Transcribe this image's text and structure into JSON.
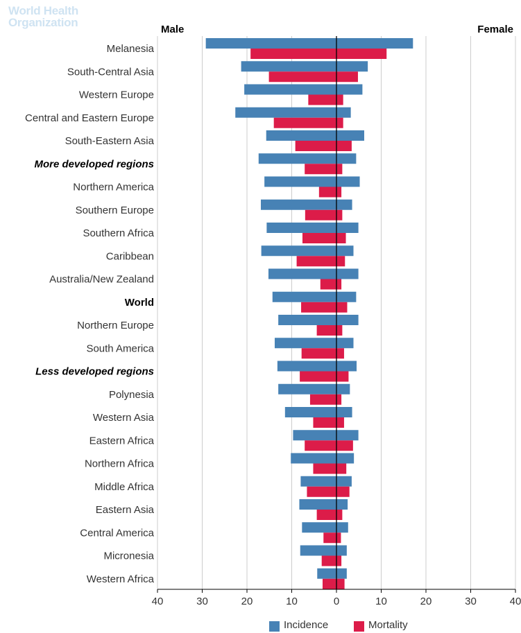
{
  "logo": {
    "line1": "World Health",
    "line2": "Organization"
  },
  "colors": {
    "incidence": "#4782b5",
    "mortality": "#dc1c49",
    "grid": "#cccccc",
    "axis": "#000000",
    "text": "#333333"
  },
  "chart_data": {
    "type": "bar",
    "orientation": "horizontal",
    "left_side_label": "Male",
    "right_side_label": "Female",
    "xlim": [
      -40,
      40
    ],
    "x_ticks": [
      {
        "value": -40,
        "label": "40"
      },
      {
        "value": -30,
        "label": "30"
      },
      {
        "value": -20,
        "label": "20"
      },
      {
        "value": -10,
        "label": "10"
      },
      {
        "value": 0,
        "label": "0"
      },
      {
        "value": 10,
        "label": "10"
      },
      {
        "value": 20,
        "label": "20"
      },
      {
        "value": 30,
        "label": "30"
      },
      {
        "value": 40,
        "label": "40"
      }
    ],
    "legend_position": "bottom",
    "grid": true,
    "series": [
      {
        "name": "Incidence"
      },
      {
        "name": "Mortality"
      }
    ],
    "categories": [
      {
        "label": "Melanesia",
        "style": "normal",
        "male_incidence": 29.2,
        "male_mortality": 19.2,
        "female_incidence": 17.1,
        "female_mortality": 11.2
      },
      {
        "label": "South-Central Asia",
        "style": "normal",
        "male_incidence": 21.3,
        "male_mortality": 15.1,
        "female_incidence": 7.0,
        "female_mortality": 4.8
      },
      {
        "label": "Western Europe",
        "style": "normal",
        "male_incidence": 20.6,
        "male_mortality": 6.3,
        "female_incidence": 5.8,
        "female_mortality": 1.5
      },
      {
        "label": "Central and Eastern Europe",
        "style": "normal",
        "male_incidence": 22.6,
        "male_mortality": 14.0,
        "female_incidence": 3.2,
        "female_mortality": 1.5
      },
      {
        "label": "South-Eastern Asia",
        "style": "normal",
        "male_incidence": 15.7,
        "male_mortality": 9.2,
        "female_incidence": 6.2,
        "female_mortality": 3.4
      },
      {
        "label": "More developed regions",
        "style": "bold-italic",
        "male_incidence": 17.4,
        "male_mortality": 7.1,
        "female_incidence": 4.4,
        "female_mortality": 1.3
      },
      {
        "label": "Northern America",
        "style": "normal",
        "male_incidence": 16.1,
        "male_mortality": 3.9,
        "female_incidence": 5.2,
        "female_mortality": 1.1
      },
      {
        "label": "Southern Europe",
        "style": "normal",
        "male_incidence": 16.9,
        "male_mortality": 7.0,
        "female_incidence": 3.5,
        "female_mortality": 1.3
      },
      {
        "label": "Southern Africa",
        "style": "normal",
        "male_incidence": 15.6,
        "male_mortality": 7.6,
        "female_incidence": 4.9,
        "female_mortality": 2.1
      },
      {
        "label": "Caribbean",
        "style": "normal",
        "male_incidence": 16.8,
        "male_mortality": 8.9,
        "female_incidence": 3.8,
        "female_mortality": 1.9
      },
      {
        "label": "Australia/New Zealand",
        "style": "normal",
        "male_incidence": 15.2,
        "male_mortality": 3.6,
        "female_incidence": 4.9,
        "female_mortality": 1.1
      },
      {
        "label": "World",
        "style": "bold",
        "male_incidence": 14.3,
        "male_mortality": 7.9,
        "female_incidence": 4.4,
        "female_mortality": 2.4
      },
      {
        "label": "Northern Europe",
        "style": "normal",
        "male_incidence": 13.0,
        "male_mortality": 4.4,
        "female_incidence": 4.9,
        "female_mortality": 1.3
      },
      {
        "label": "South America",
        "style": "normal",
        "male_incidence": 13.8,
        "male_mortality": 7.8,
        "female_incidence": 3.8,
        "female_mortality": 1.7
      },
      {
        "label": "Less developed regions",
        "style": "bold-italic",
        "male_incidence": 13.2,
        "male_mortality": 8.2,
        "female_incidence": 4.5,
        "female_mortality": 2.7
      },
      {
        "label": "Polynesia",
        "style": "normal",
        "male_incidence": 13.0,
        "male_mortality": 5.9,
        "female_incidence": 3.0,
        "female_mortality": 1.1
      },
      {
        "label": "Western Asia",
        "style": "normal",
        "male_incidence": 11.5,
        "male_mortality": 5.2,
        "female_incidence": 3.5,
        "female_mortality": 1.7
      },
      {
        "label": "Eastern Africa",
        "style": "normal",
        "male_incidence": 9.7,
        "male_mortality": 7.1,
        "female_incidence": 4.9,
        "female_mortality": 3.7
      },
      {
        "label": "Northern Africa",
        "style": "normal",
        "male_incidence": 10.2,
        "male_mortality": 5.2,
        "female_incidence": 3.9,
        "female_mortality": 2.2
      },
      {
        "label": "Middle Africa",
        "style": "normal",
        "male_incidence": 8.0,
        "male_mortality": 6.6,
        "female_incidence": 3.4,
        "female_mortality": 2.9
      },
      {
        "label": "Eastern Asia",
        "style": "normal",
        "male_incidence": 8.3,
        "male_mortality": 4.4,
        "female_incidence": 2.5,
        "female_mortality": 1.3
      },
      {
        "label": "Central America",
        "style": "normal",
        "male_incidence": 7.7,
        "male_mortality": 2.9,
        "female_incidence": 2.6,
        "female_mortality": 1.0
      },
      {
        "label": "Micronesia",
        "style": "normal",
        "male_incidence": 8.1,
        "male_mortality": 3.3,
        "female_incidence": 2.3,
        "female_mortality": 1.1
      },
      {
        "label": "Western Africa",
        "style": "normal",
        "male_incidence": 4.3,
        "male_mortality": 3.1,
        "female_incidence": 2.3,
        "female_mortality": 1.8
      }
    ]
  }
}
